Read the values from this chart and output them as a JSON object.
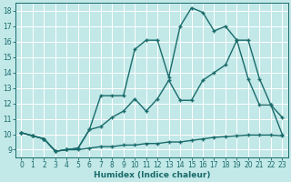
{
  "xlabel": "Humidex (Indice chaleur)",
  "xlim": [
    -0.5,
    23.5
  ],
  "ylim": [
    8.5,
    18.5
  ],
  "xticks": [
    0,
    1,
    2,
    3,
    4,
    5,
    6,
    7,
    8,
    9,
    10,
    11,
    12,
    13,
    14,
    15,
    16,
    17,
    18,
    19,
    20,
    21,
    22,
    23
  ],
  "yticks": [
    9,
    10,
    11,
    12,
    13,
    14,
    15,
    16,
    17,
    18
  ],
  "bg_color": "#c2e8e8",
  "line_color": "#1a6b6b",
  "grid_color": "#ffffff",
  "line1_x": [
    0,
    1,
    2,
    3,
    4,
    5,
    6,
    7,
    8,
    9,
    10,
    11,
    12,
    13,
    14,
    15,
    16,
    17,
    18,
    19,
    20,
    21,
    22,
    23
  ],
  "line1_y": [
    10.1,
    9.9,
    9.7,
    8.9,
    9.0,
    9.0,
    9.1,
    9.2,
    9.2,
    9.3,
    9.3,
    9.4,
    9.4,
    9.5,
    9.5,
    9.6,
    9.7,
    9.8,
    9.85,
    9.9,
    9.95,
    9.95,
    9.95,
    9.9
  ],
  "line2_x": [
    0,
    1,
    2,
    3,
    4,
    5,
    6,
    7,
    8,
    9,
    10,
    11,
    12,
    13,
    14,
    15,
    16,
    17,
    18,
    19,
    20,
    21,
    22,
    23
  ],
  "line2_y": [
    10.1,
    9.9,
    9.7,
    8.9,
    9.0,
    9.1,
    10.3,
    10.5,
    11.1,
    11.5,
    12.3,
    11.5,
    12.3,
    13.5,
    12.2,
    12.2,
    13.5,
    14.0,
    14.5,
    16.1,
    16.1,
    13.6,
    11.9,
    11.1
  ],
  "line3_x": [
    0,
    1,
    2,
    3,
    4,
    5,
    6,
    7,
    8,
    9,
    10,
    11,
    12,
    13,
    14,
    15,
    16,
    17,
    18,
    19,
    20,
    21,
    22,
    23
  ],
  "line3_y": [
    10.1,
    9.9,
    9.7,
    8.9,
    9.0,
    9.1,
    10.3,
    12.5,
    12.5,
    12.5,
    15.5,
    16.1,
    16.1,
    13.7,
    17.0,
    18.2,
    17.9,
    16.7,
    17.0,
    16.1,
    13.6,
    11.9,
    11.9,
    10.0
  ]
}
